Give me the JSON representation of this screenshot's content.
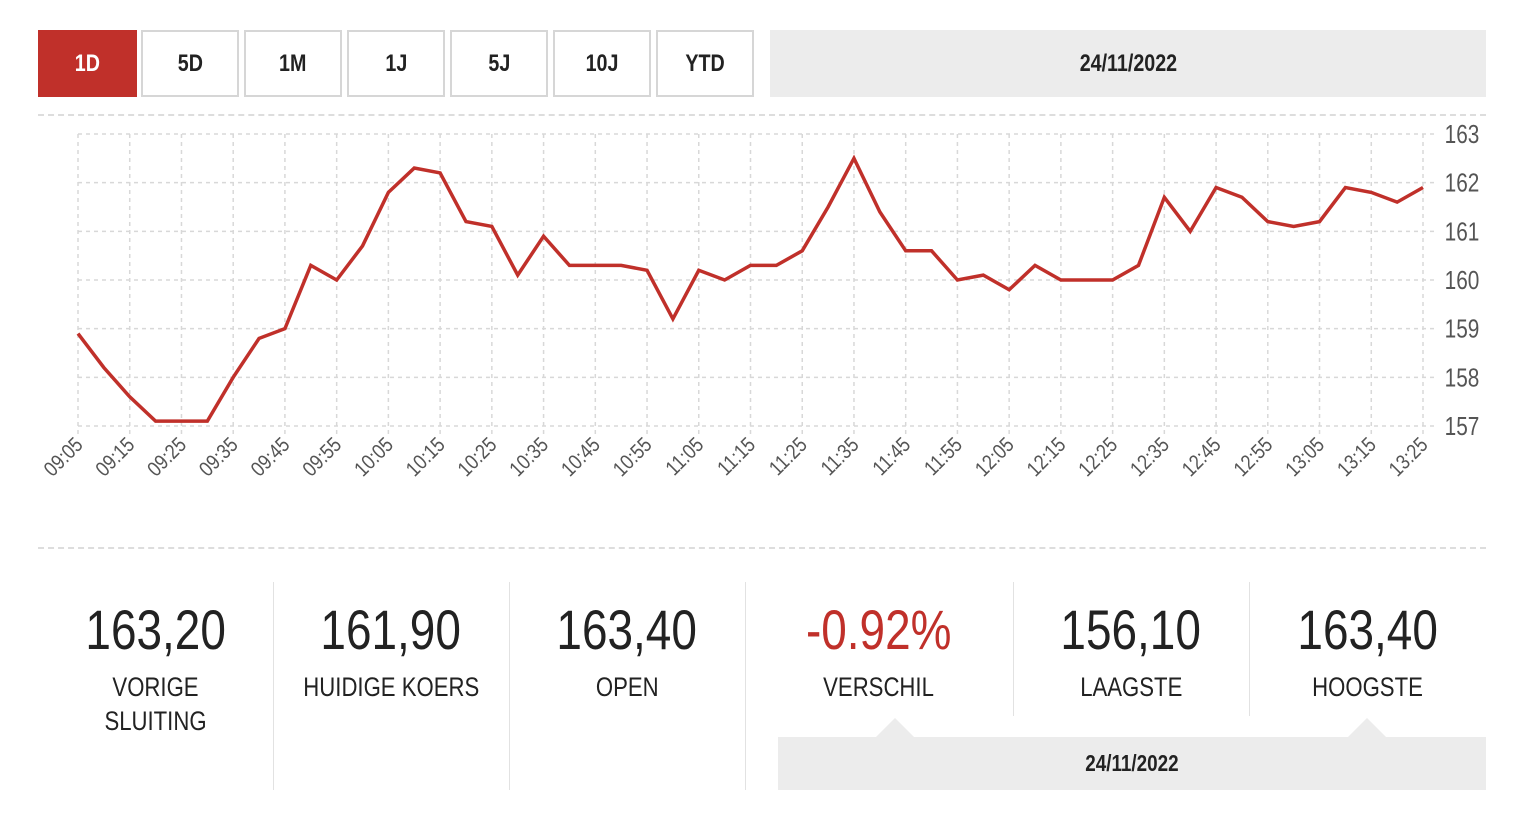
{
  "range_buttons": [
    "1D",
    "5D",
    "1M",
    "1J",
    "5J",
    "10J",
    "YTD"
  ],
  "active_range": "1D",
  "header_date": "24/11/2022",
  "colors": {
    "accent": "#c0302a",
    "line": "#c0302a",
    "panel": "#ececec"
  },
  "chart_data": {
    "type": "line",
    "title": "",
    "xlabel": "",
    "ylabel": "",
    "ylim": [
      157,
      163
    ],
    "y_ticks": [
      "157",
      "158",
      "159",
      "160",
      "161",
      "162",
      "163"
    ],
    "y_axis_position": "right",
    "grid": true,
    "x_tick_labels": [
      "09:05",
      "09:15",
      "09:25",
      "09:35",
      "09:45",
      "09:55",
      "10:05",
      "10:15",
      "10:25",
      "10:35",
      "10:45",
      "10:55",
      "11:05",
      "11:15",
      "11:25",
      "11:35",
      "11:45",
      "11:55",
      "12:05",
      "12:15",
      "12:25",
      "12:35",
      "12:45",
      "12:55",
      "13:05",
      "13:15",
      "13:25"
    ],
    "x_interval_minutes": 5,
    "series": [
      {
        "name": "Koers",
        "values": [
          158.9,
          158.2,
          157.6,
          157.1,
          157.1,
          157.1,
          158.0,
          158.8,
          159.0,
          160.3,
          160.0,
          160.7,
          161.8,
          162.3,
          162.2,
          161.2,
          161.1,
          160.1,
          160.9,
          160.3,
          160.3,
          160.3,
          160.2,
          159.2,
          160.2,
          160.0,
          160.3,
          160.3,
          160.6,
          161.5,
          162.5,
          161.4,
          160.6,
          160.6,
          160.0,
          160.1,
          159.8,
          160.3,
          160.0,
          160.0,
          160.0,
          160.3,
          161.7,
          161.0,
          161.9,
          161.7,
          161.2,
          161.1,
          161.2,
          161.9,
          161.8,
          161.6,
          161.9
        ]
      }
    ]
  },
  "stats": [
    {
      "value": "163,20",
      "label": "VORIGE SLUITING"
    },
    {
      "value": "161,90",
      "label": "HUIDIGE KOERS"
    },
    {
      "value": "163,40",
      "label": "OPEN"
    },
    {
      "value": "-0.92%",
      "label": "VERSCHIL",
      "color": "#c0302a"
    },
    {
      "value": "156,10",
      "label": "LAAGSTE"
    },
    {
      "value": "163,40",
      "label": "HOOGSTE"
    }
  ],
  "footer_date": "24/11/2022"
}
